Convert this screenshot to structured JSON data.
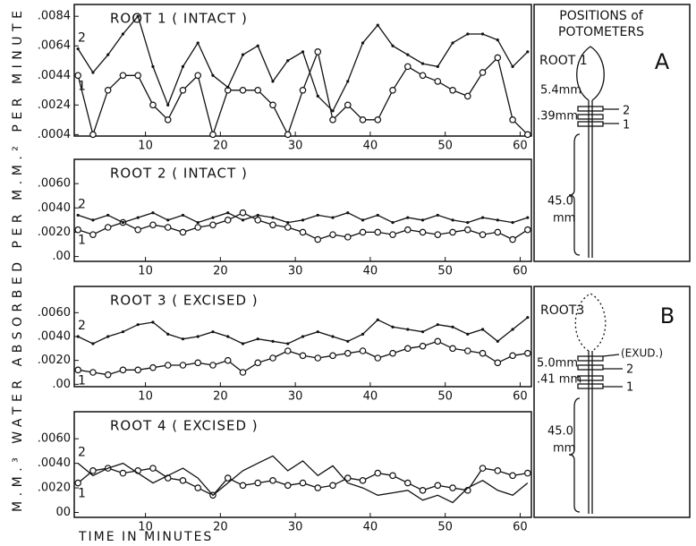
{
  "chart_data": [
    {
      "type": "line",
      "title": "ROOT 1 ( INTACT )",
      "x": [
        1,
        3,
        5,
        7,
        9,
        11,
        13,
        15,
        17,
        19,
        21,
        23,
        25,
        27,
        29,
        31,
        33,
        35,
        37,
        39,
        41,
        43,
        45,
        47,
        49,
        51,
        53,
        55,
        57,
        59,
        61
      ],
      "series": [
        {
          "name": "1",
          "color": "#111111",
          "marker": "circle",
          "values": [
            0.0044,
            0.0004,
            0.0034,
            0.0044,
            0.0044,
            0.0024,
            0.0014,
            0.0034,
            0.0044,
            0.0004,
            0.0034,
            0.0034,
            0.0034,
            0.0024,
            0.0004,
            0.0034,
            0.006,
            0.0014,
            0.0024,
            0.0014,
            0.0014,
            0.0034,
            0.005,
            0.0044,
            0.004,
            0.0034,
            0.003,
            0.0046,
            0.0056,
            0.0014,
            0.0004
          ]
        },
        {
          "name": "2",
          "color": "#111111",
          "marker": "dot",
          "values": [
            0.0062,
            0.0046,
            0.0058,
            0.0072,
            0.0084,
            0.005,
            0.0024,
            0.005,
            0.0066,
            0.0044,
            0.0036,
            0.0058,
            0.0064,
            0.004,
            0.0054,
            0.006,
            0.003,
            0.002,
            0.004,
            0.0066,
            0.0078,
            0.0064,
            0.0058,
            0.0052,
            0.005,
            0.0066,
            0.0072,
            0.0072,
            0.0068,
            0.005,
            0.006
          ]
        }
      ],
      "xlim": [
        0.5,
        61.5
      ],
      "xticks": [
        10,
        20,
        30,
        40,
        50,
        60
      ],
      "ylim": [
        0.0003,
        0.0092
      ],
      "yticks": [
        {
          "value": 0.0004,
          "label": ".0004"
        },
        {
          "value": 0.0024,
          "label": ".0024"
        },
        {
          "value": 0.0044,
          "label": ".0044"
        },
        {
          "value": 0.0064,
          "label": ".0064"
        },
        {
          "value": 0.0084,
          "label": ".0084"
        }
      ]
    },
    {
      "type": "line",
      "title": "ROOT 2 ( INTACT )",
      "x": [
        1,
        3,
        5,
        7,
        9,
        11,
        13,
        15,
        17,
        19,
        21,
        23,
        25,
        27,
        29,
        31,
        33,
        35,
        37,
        39,
        41,
        43,
        45,
        47,
        49,
        51,
        53,
        55,
        57,
        59,
        61
      ],
      "series": [
        {
          "name": "1",
          "color": "#111111",
          "marker": "circle",
          "values": [
            0.0022,
            0.0018,
            0.0024,
            0.0028,
            0.0022,
            0.0026,
            0.0024,
            0.002,
            0.0024,
            0.0026,
            0.003,
            0.0036,
            0.003,
            0.0026,
            0.0024,
            0.002,
            0.0014,
            0.0018,
            0.0016,
            0.002,
            0.002,
            0.0018,
            0.0022,
            0.002,
            0.0018,
            0.002,
            0.0022,
            0.0018,
            0.002,
            0.0014,
            0.0022
          ]
        },
        {
          "name": "2",
          "color": "#111111",
          "marker": "dot",
          "values": [
            0.0034,
            0.003,
            0.0034,
            0.0028,
            0.0032,
            0.0036,
            0.003,
            0.0034,
            0.0028,
            0.0032,
            0.0036,
            0.003,
            0.0034,
            0.0032,
            0.0028,
            0.003,
            0.0034,
            0.0032,
            0.0036,
            0.003,
            0.0034,
            0.0028,
            0.0032,
            0.003,
            0.0034,
            0.003,
            0.0028,
            0.0032,
            0.003,
            0.0028,
            0.0032
          ]
        }
      ],
      "xlim": [
        0.5,
        61.5
      ],
      "xticks": [
        10,
        20,
        30,
        40,
        50,
        60
      ],
      "ylim": [
        -0.0004,
        0.008
      ],
      "yticks": [
        {
          "value": 0,
          "label": ".00"
        },
        {
          "value": 0.002,
          "label": ".0020"
        },
        {
          "value": 0.004,
          "label": ".0040"
        },
        {
          "value": 0.006,
          "label": ".0060"
        }
      ]
    },
    {
      "type": "line",
      "title": "ROOT 3 ( EXCISED )",
      "x": [
        1,
        3,
        5,
        7,
        9,
        11,
        13,
        15,
        17,
        19,
        21,
        23,
        25,
        27,
        29,
        31,
        33,
        35,
        37,
        39,
        41,
        43,
        45,
        47,
        49,
        51,
        53,
        55,
        57,
        59,
        61
      ],
      "series": [
        {
          "name": "1",
          "color": "#111111",
          "marker": "circle",
          "values": [
            0.0012,
            0.001,
            0.0008,
            0.0012,
            0.0012,
            0.0014,
            0.0016,
            0.0016,
            0.0018,
            0.0016,
            0.002,
            0.001,
            0.0018,
            0.0022,
            0.0028,
            0.0024,
            0.0022,
            0.0024,
            0.0026,
            0.0028,
            0.0022,
            0.0026,
            0.003,
            0.0032,
            0.0036,
            0.003,
            0.0028,
            0.0026,
            0.0018,
            0.0024,
            0.0026
          ]
        },
        {
          "name": "2",
          "color": "#111111",
          "marker": "dot",
          "values": [
            0.004,
            0.0034,
            0.004,
            0.0044,
            0.005,
            0.0052,
            0.0042,
            0.0038,
            0.004,
            0.0044,
            0.004,
            0.0034,
            0.0038,
            0.0036,
            0.0034,
            0.004,
            0.0044,
            0.004,
            0.0036,
            0.0042,
            0.0054,
            0.0048,
            0.0046,
            0.0044,
            0.005,
            0.0048,
            0.0042,
            0.0046,
            0.0036,
            0.0046,
            0.0056
          ]
        }
      ],
      "xlim": [
        0.5,
        61.5
      ],
      "xticks": [
        10,
        20,
        30,
        40,
        50,
        60
      ],
      "ylim": [
        -0.0002,
        0.0082
      ],
      "yticks": [
        {
          "value": 0,
          "label": ".00"
        },
        {
          "value": 0.002,
          "label": ".0020"
        },
        {
          "value": 0.004,
          "label": ".0040"
        },
        {
          "value": 0.006,
          "label": ".0060"
        }
      ]
    },
    {
      "type": "line",
      "title": "ROOT 4 ( EXCISED )",
      "x": [
        1,
        3,
        5,
        7,
        9,
        11,
        13,
        15,
        17,
        19,
        21,
        23,
        25,
        27,
        29,
        31,
        33,
        35,
        37,
        39,
        41,
        43,
        45,
        47,
        49,
        51,
        53,
        55,
        57,
        59,
        61
      ],
      "series": [
        {
          "name": "1",
          "color": "#111111",
          "marker": "circle",
          "values": [
            0.0024,
            0.0034,
            0.0036,
            0.0032,
            0.0034,
            0.0036,
            0.0028,
            0.0026,
            0.002,
            0.0014,
            0.0028,
            0.0022,
            0.0024,
            0.0026,
            0.0022,
            0.0024,
            0.002,
            0.0022,
            0.0028,
            0.0026,
            0.0032,
            0.003,
            0.0024,
            0.0018,
            0.0022,
            0.002,
            0.0018,
            0.0036,
            0.0034,
            0.003,
            0.0032
          ]
        },
        {
          "name": "2",
          "color": "#111111",
          "marker": "line",
          "values": [
            0.004,
            0.003,
            0.0036,
            0.004,
            0.0032,
            0.0024,
            0.003,
            0.0036,
            0.0028,
            0.0014,
            0.0024,
            0.0034,
            0.004,
            0.0046,
            0.0034,
            0.0042,
            0.003,
            0.0038,
            0.0024,
            0.002,
            0.0014,
            0.0016,
            0.0018,
            0.001,
            0.0014,
            0.0008,
            0.002,
            0.0026,
            0.0018,
            0.0014,
            0.0024
          ]
        }
      ],
      "xlim": [
        0.5,
        61.5
      ],
      "xticks": [
        10,
        20,
        30,
        40,
        50,
        60
      ],
      "ylim": [
        -0.0004,
        0.0082
      ],
      "yticks": [
        {
          "value": 0,
          "label": "00"
        },
        {
          "value": 0.002,
          "label": ".0020"
        },
        {
          "value": 0.004,
          "label": ".0040"
        },
        {
          "value": 0.006,
          "label": ".0060"
        }
      ]
    }
  ],
  "y_label": "M.M.³ WATER ABSORBED PER M.M.² PER MINUTE",
  "x_label": "TIME IN MINUTES",
  "diagrams": {
    "heading": [
      "POSITIONS of",
      "POTOMETERS"
    ],
    "a": {
      "letter": "A",
      "root": "ROOT 1",
      "gap_upper": "5.4mm",
      "gap_lower": ".39mm",
      "port_2": "2",
      "port_1": "1",
      "length": [
        "45.0",
        "mm"
      ]
    },
    "b": {
      "letter": "B",
      "root": "ROOT3",
      "gap_upper": "5.0mm",
      "exudate": "(EXUD.)",
      "gap_lower": ".41 mm",
      "port_2": "2",
      "port_1": "1",
      "length": [
        "45.0",
        "mm"
      ]
    }
  }
}
